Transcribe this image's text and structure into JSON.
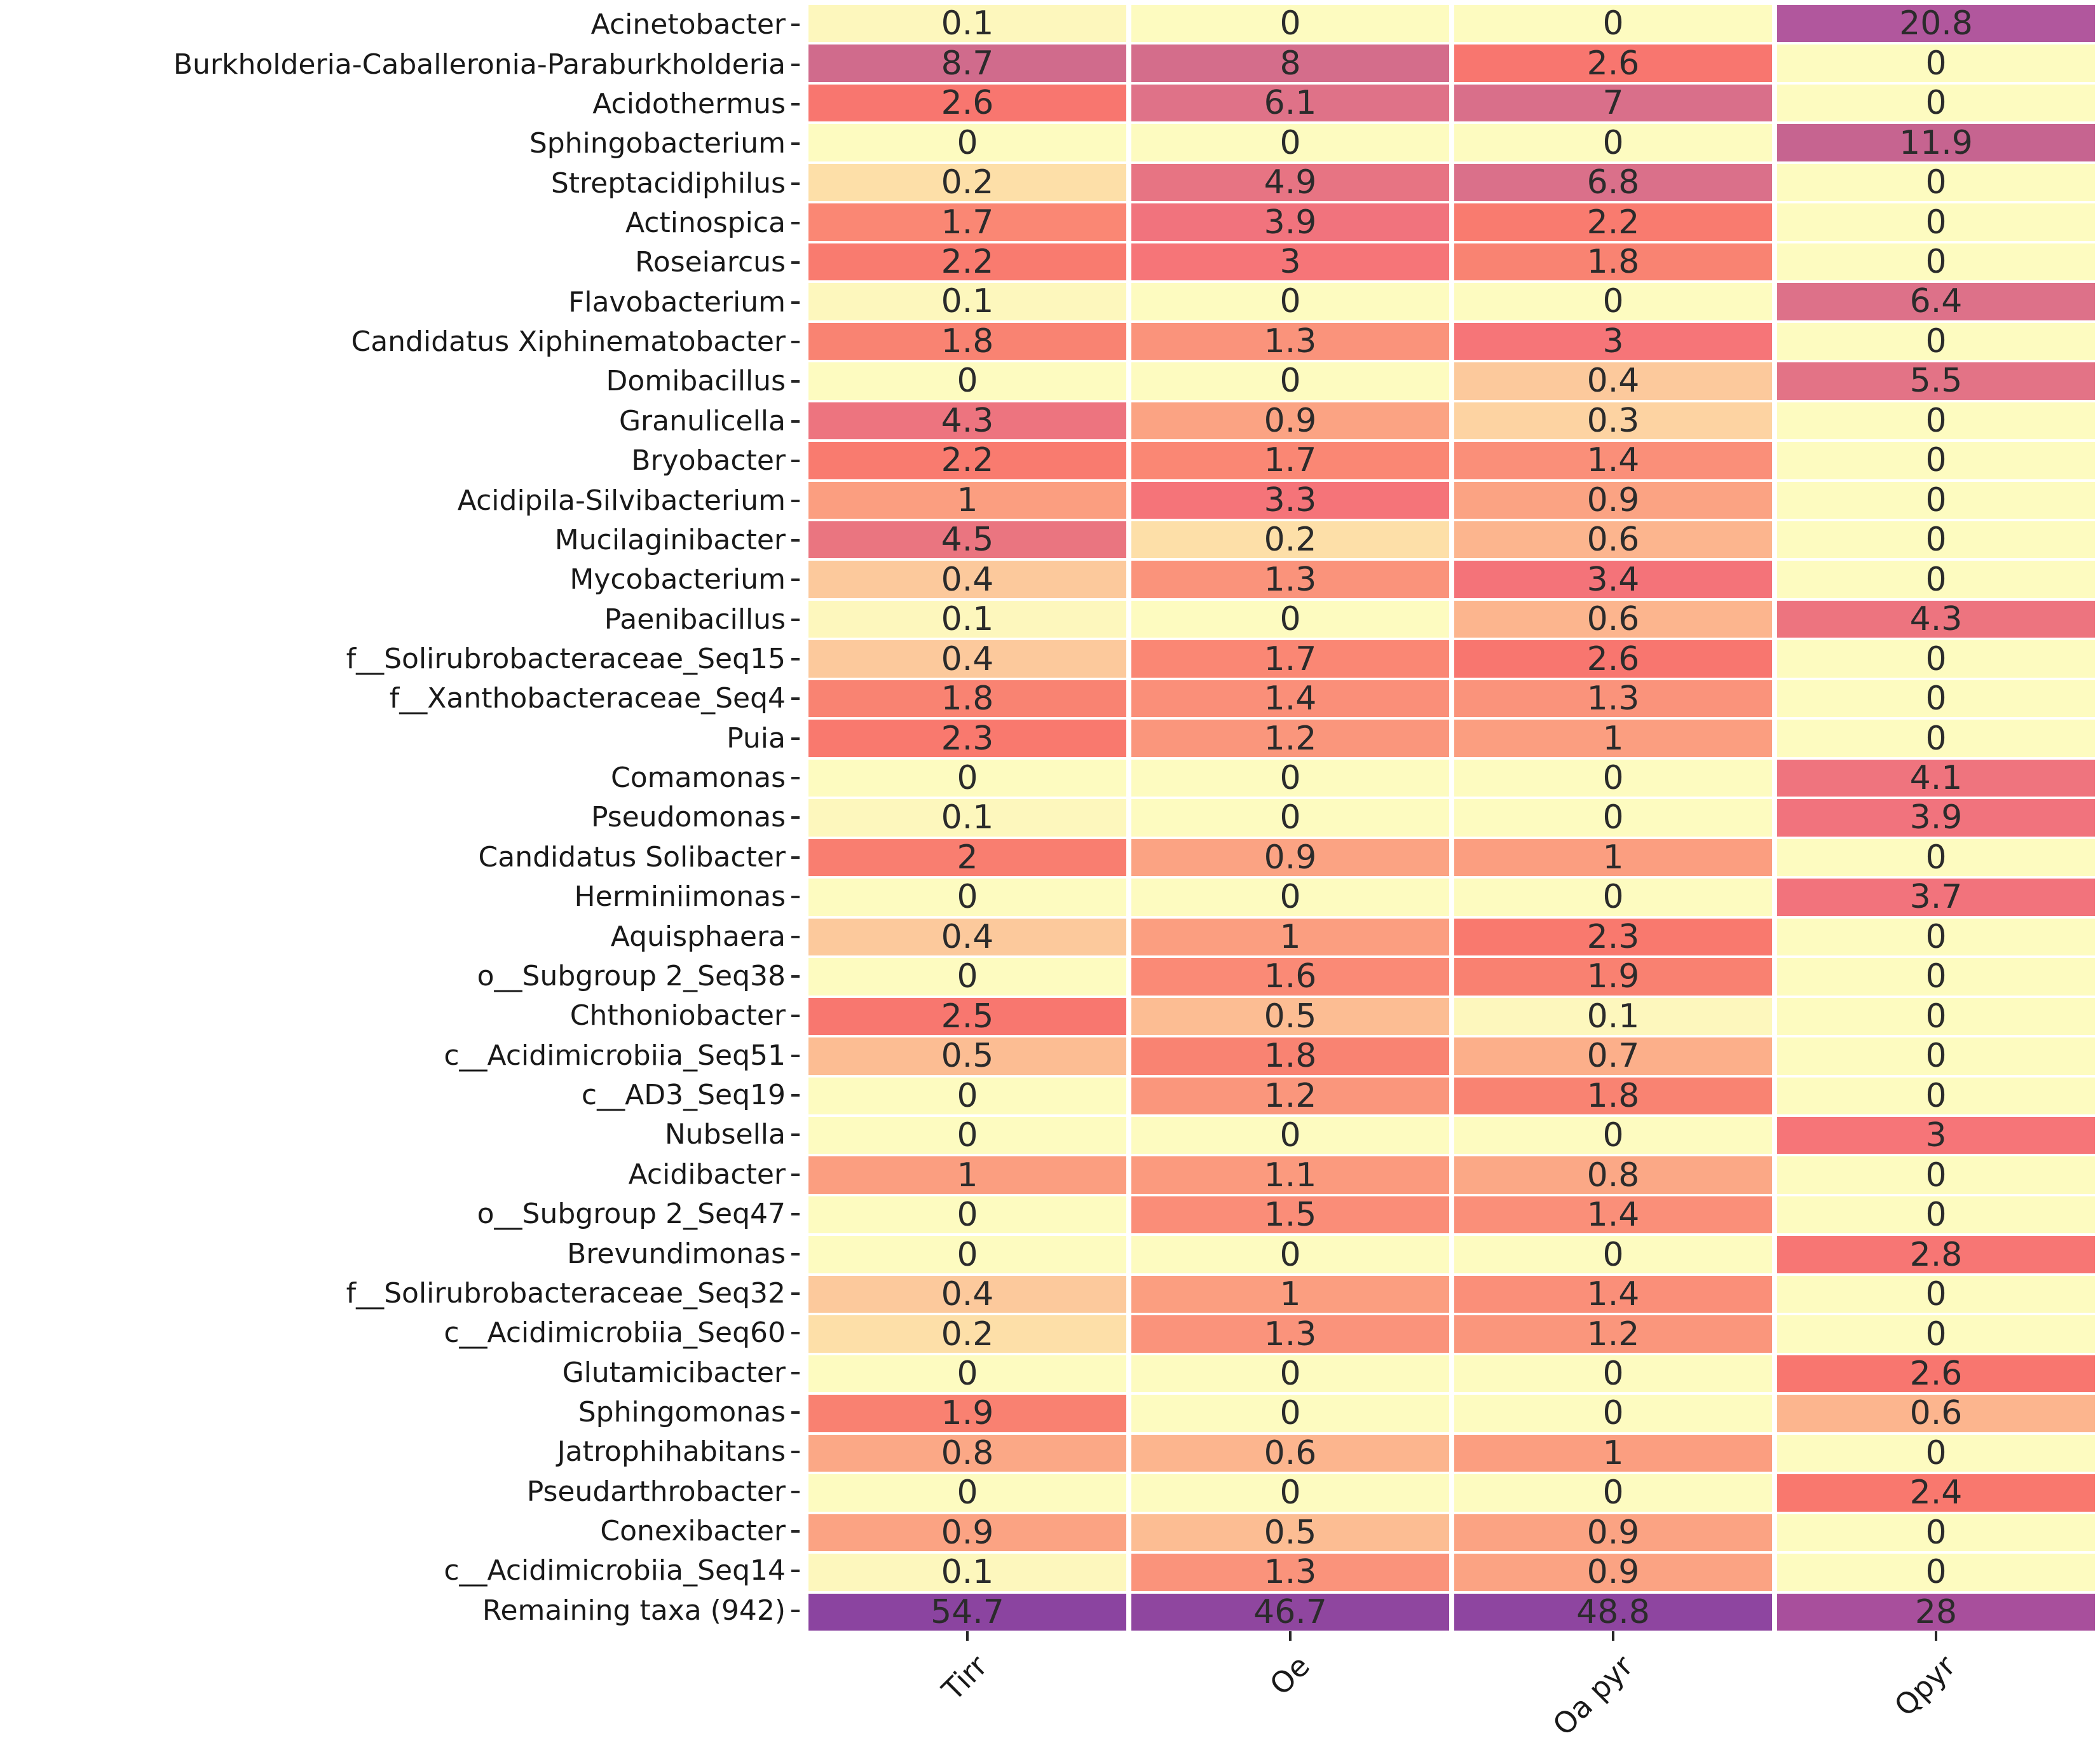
{
  "chart_data": {
    "type": "heatmap",
    "title": "",
    "xlabel": "",
    "ylabel": "",
    "legend": "none",
    "grid": "off",
    "annotations_shown": true,
    "columns": [
      "Tirr",
      "Oe",
      "Oa pyr",
      "Qpyr"
    ],
    "rows": [
      "Acinetobacter",
      "Burkholderia-Caballeronia-Paraburkholderia",
      "Acidothermus",
      "Sphingobacterium",
      "Streptacidiphilus",
      "Actinospica",
      "Roseiarcus",
      "Flavobacterium",
      "Candidatus Xiphinematobacter",
      "Domibacillus",
      "Granulicella",
      "Bryobacter",
      "Acidipila-Silvibacterium",
      "Mucilaginibacter",
      "Mycobacterium",
      "Paenibacillus",
      "f__Solirubrobacteraceae_Seq15",
      "f__Xanthobacteraceae_Seq4",
      "Puia",
      "Comamonas",
      "Pseudomonas",
      "Candidatus Solibacter",
      "Herminiimonas",
      "Aquisphaera",
      "o__Subgroup 2_Seq38",
      "Chthoniobacter",
      "c__Acidimicrobiia_Seq51",
      "c__AD3_Seq19",
      "Nubsella",
      "Acidibacter",
      "o__Subgroup 2_Seq47",
      "Brevundimonas",
      "f__Solirubrobacteraceae_Seq32",
      "c__Acidimicrobiia_Seq60",
      "Glutamicibacter",
      "Sphingomonas",
      "Jatrophihabitans",
      "Pseudarthrobacter",
      "Conexibacter",
      "c__Acidimicrobiia_Seq14",
      "Remaining taxa (942)"
    ],
    "values": [
      [
        0.1,
        0,
        0,
        20.8
      ],
      [
        8.7,
        8,
        2.6,
        0
      ],
      [
        2.6,
        6.1,
        7,
        0
      ],
      [
        0,
        0,
        0,
        11.9
      ],
      [
        0.2,
        4.9,
        6.8,
        0
      ],
      [
        1.7,
        3.9,
        2.2,
        0
      ],
      [
        2.2,
        3,
        1.8,
        0
      ],
      [
        0.1,
        0,
        0,
        6.4
      ],
      [
        1.8,
        1.3,
        3,
        0
      ],
      [
        0,
        0,
        0.4,
        5.5
      ],
      [
        4.3,
        0.9,
        0.3,
        0
      ],
      [
        2.2,
        1.7,
        1.4,
        0
      ],
      [
        1,
        3.3,
        0.9,
        0
      ],
      [
        4.5,
        0.2,
        0.6,
        0
      ],
      [
        0.4,
        1.3,
        3.4,
        0
      ],
      [
        0.1,
        0,
        0.6,
        4.3
      ],
      [
        0.4,
        1.7,
        2.6,
        0
      ],
      [
        1.8,
        1.4,
        1.3,
        0
      ],
      [
        2.3,
        1.2,
        1,
        0
      ],
      [
        0,
        0,
        0,
        4.1
      ],
      [
        0.1,
        0,
        0,
        3.9
      ],
      [
        2,
        0.9,
        1,
        0
      ],
      [
        0,
        0,
        0,
        3.7
      ],
      [
        0.4,
        1,
        2.3,
        0
      ],
      [
        0,
        1.6,
        1.9,
        0
      ],
      [
        2.5,
        0.5,
        0.1,
        0
      ],
      [
        0.5,
        1.8,
        0.7,
        0
      ],
      [
        0,
        1.2,
        1.8,
        0
      ],
      [
        0,
        0,
        0,
        3
      ],
      [
        1,
        1.1,
        0.8,
        0
      ],
      [
        0,
        1.5,
        1.4,
        0
      ],
      [
        0,
        0,
        0,
        2.8
      ],
      [
        0.4,
        1,
        1.4,
        0
      ],
      [
        0.2,
        1.3,
        1.2,
        0
      ],
      [
        0,
        0,
        0,
        2.6
      ],
      [
        1.9,
        0,
        0,
        0.6
      ],
      [
        0.8,
        0.6,
        1,
        0
      ],
      [
        0,
        0,
        0,
        2.4
      ],
      [
        0.9,
        0.5,
        0.9,
        0
      ],
      [
        0.1,
        1.3,
        0.9,
        0
      ],
      [
        54.7,
        46.7,
        48.8,
        28
      ]
    ],
    "colormap": {
      "description": "yellow-orange-red-purple sequential (magma-reversed style)",
      "stops": [
        [
          0,
          "#FDFBC0"
        ],
        [
          0.1,
          "#FDF7BD"
        ],
        [
          0.2,
          "#FDDFA8"
        ],
        [
          0.3,
          "#FDD3A2"
        ],
        [
          0.4,
          "#FCC99C"
        ],
        [
          0.5,
          "#FCBD93"
        ],
        [
          0.6,
          "#FCB58E"
        ],
        [
          0.8,
          "#FBA886"
        ],
        [
          1.0,
          "#FB9E80"
        ],
        [
          1.2,
          "#FA967C"
        ],
        [
          1.4,
          "#FA8F79"
        ],
        [
          1.6,
          "#FA8A76"
        ],
        [
          1.8,
          "#F98372"
        ],
        [
          2.0,
          "#F97E70"
        ],
        [
          2.3,
          "#F9796E"
        ],
        [
          2.6,
          "#F8766F"
        ],
        [
          3.0,
          "#F67578"
        ],
        [
          3.4,
          "#F47379"
        ],
        [
          3.7,
          "#F2737C"
        ],
        [
          3.9,
          "#F1737D"
        ],
        [
          4.1,
          "#EF747E"
        ],
        [
          4.3,
          "#ED747F"
        ],
        [
          4.5,
          "#EA7580"
        ],
        [
          4.9,
          "#E77483"
        ],
        [
          5.5,
          "#E37386"
        ],
        [
          6.1,
          "#DF7288"
        ],
        [
          6.4,
          "#DD7189"
        ],
        [
          6.8,
          "#DA708A"
        ],
        [
          7.0,
          "#D96F8A"
        ],
        [
          8.0,
          "#D46D8B"
        ],
        [
          8.7,
          "#D06B8C"
        ],
        [
          11.9,
          "#C66490"
        ],
        [
          15,
          "#BE5E95"
        ],
        [
          20.8,
          "#B1579D"
        ],
        [
          28,
          "#A84F9C"
        ],
        [
          40,
          "#93479F"
        ],
        [
          54.7,
          "#8B44A0"
        ]
      ]
    },
    "colors": {
      "annotation_text": "#2b2b2b",
      "axis_label_text": "#191919",
      "tick_mark": "#262626",
      "background": "#ffffff"
    }
  }
}
